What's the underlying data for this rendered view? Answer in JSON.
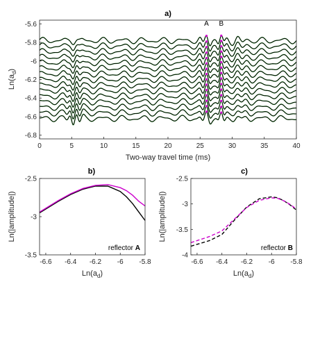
{
  "chart_data": [
    {
      "panel": "a)",
      "type": "line",
      "xlabel": "Two-way travel time (ms)",
      "ylabel": "Ln(a_d)",
      "xlim": [
        0,
        40
      ],
      "ylim": [
        -6.84,
        -5.56
      ],
      "x_ticks": [
        "0",
        "5",
        "10",
        "15",
        "20",
        "25",
        "30",
        "35",
        "40"
      ],
      "y_ticks": [
        "-5.6",
        "-5.8",
        "-6",
        "-6.2",
        "-6.4",
        "-6.6",
        "-6.8"
      ],
      "trace_baselines": [
        -5.78,
        -5.84,
        -5.9,
        -5.96,
        -6.02,
        -6.08,
        -6.14,
        -6.2,
        -6.26,
        -6.32,
        -6.38,
        -6.44,
        -6.5,
        -6.56,
        -6.62
      ],
      "reflector_times": [
        26.0,
        28.3
      ],
      "reflector_labels": [
        "A",
        "B"
      ],
      "colors": {
        "trace": "#000000",
        "model": "#1a8a1a",
        "pick": "#cc00cc"
      }
    },
    {
      "panel": "b)",
      "type": "line",
      "xlabel": "Ln(a_d)",
      "ylabel": "Ln(|amplitude|)",
      "xlim": [
        -6.65,
        -5.8
      ],
      "ylim": [
        -3.5,
        -2.5
      ],
      "x_ticks": [
        "-6.6",
        "-6.4",
        "-6.2",
        "-6",
        "-5.8"
      ],
      "y_ticks": [
        "-2.5",
        "-3",
        "-3.5"
      ],
      "annotation": "reflector",
      "annotation_bold": "A",
      "series": [
        {
          "color": "#000000",
          "dash": "solid",
          "x": [
            -6.65,
            -6.5,
            -6.4,
            -6.3,
            -6.2,
            -6.1,
            -6.0,
            -5.95,
            -5.9,
            -5.85,
            -5.8
          ],
          "y": [
            -2.95,
            -2.8,
            -2.71,
            -2.64,
            -2.6,
            -2.6,
            -2.67,
            -2.74,
            -2.83,
            -2.94,
            -3.05
          ]
        },
        {
          "color": "#cc00cc",
          "dash": "solid",
          "x": [
            -6.65,
            -6.5,
            -6.4,
            -6.3,
            -6.2,
            -6.1,
            -6.0,
            -5.95,
            -5.9,
            -5.85,
            -5.8
          ],
          "y": [
            -2.94,
            -2.79,
            -2.7,
            -2.63,
            -2.59,
            -2.58,
            -2.62,
            -2.66,
            -2.72,
            -2.8,
            -2.86
          ]
        }
      ]
    },
    {
      "panel": "c)",
      "type": "line",
      "xlabel": "Ln(a_d)",
      "ylabel": "Ln(|amplitude|)",
      "xlim": [
        -6.65,
        -5.8
      ],
      "ylim": [
        -4.0,
        -2.5
      ],
      "x_ticks": [
        "-6.6",
        "-6.4",
        "-6.2",
        "-6",
        "-5.8"
      ],
      "y_ticks": [
        "-2.5",
        "-3",
        "-3.5",
        "-4"
      ],
      "annotation": "reflector",
      "annotation_bold": "B",
      "series": [
        {
          "color": "#000000",
          "dash": "dashed",
          "x": [
            -6.65,
            -6.5,
            -6.4,
            -6.3,
            -6.2,
            -6.1,
            -6.0,
            -5.95,
            -5.9,
            -5.85,
            -5.8
          ],
          "y": [
            -3.83,
            -3.72,
            -3.6,
            -3.32,
            -3.06,
            -2.9,
            -2.86,
            -2.88,
            -2.94,
            -3.02,
            -3.12
          ]
        },
        {
          "color": "#cc00cc",
          "dash": "dashed",
          "x": [
            -6.65,
            -6.5,
            -6.4,
            -6.3,
            -6.2,
            -6.1,
            -6.0,
            -5.95,
            -5.9,
            -5.85,
            -5.8
          ],
          "y": [
            -3.76,
            -3.64,
            -3.53,
            -3.3,
            -3.07,
            -2.93,
            -2.88,
            -2.89,
            -2.94,
            -3.01,
            -3.1
          ]
        }
      ]
    }
  ]
}
